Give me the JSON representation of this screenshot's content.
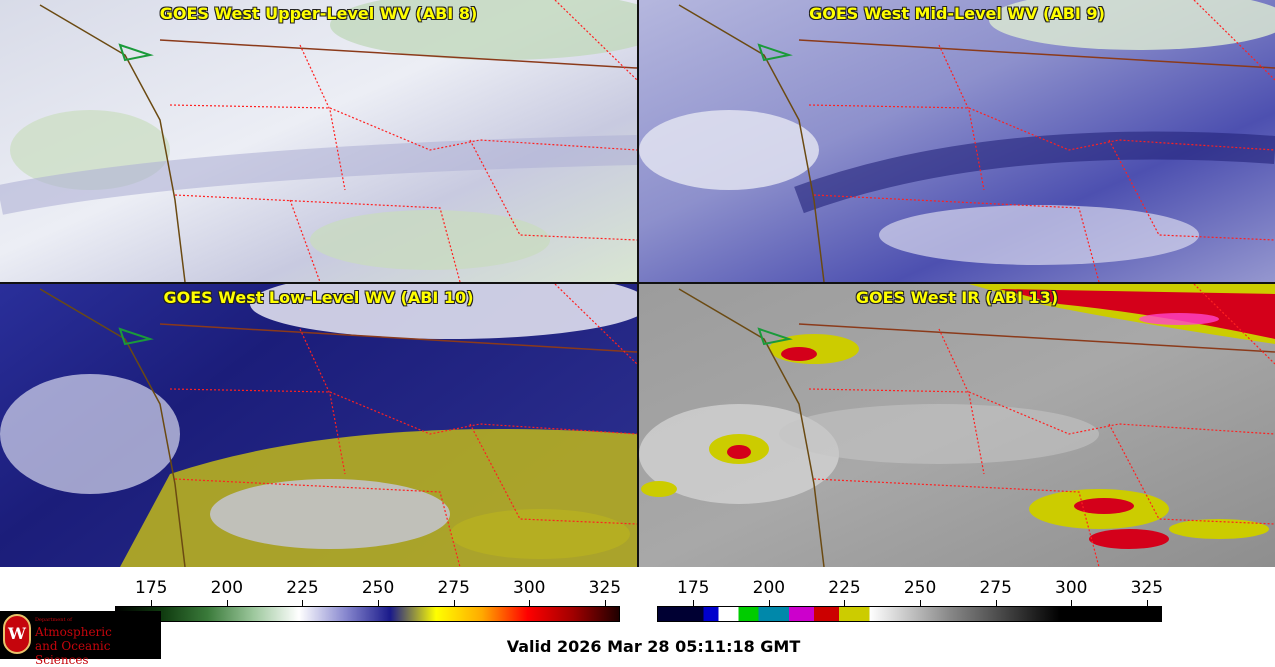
{
  "panels": [
    {
      "title": "GOES West Upper-Level WV (ABI 8)"
    },
    {
      "title": "GOES West Mid-Level WV (ABI 9)"
    },
    {
      "title": "GOES West Low-Level WV (ABI 10)"
    },
    {
      "title": "GOES West IR (ABI 13)"
    }
  ],
  "colorbars": {
    "wv": {
      "ticks": [
        "175",
        "200",
        "225",
        "250",
        "275",
        "300",
        "325"
      ],
      "colors": [
        "#000000",
        "#0f3a0f",
        "#3a7a3a",
        "#9cc79c",
        "#ffffff",
        "#8a8ad0",
        "#1a1a8a",
        "#ffff00",
        "#ffaa00",
        "#ff0000",
        "#a00000",
        "#200000"
      ]
    },
    "ir": {
      "ticks": [
        "175",
        "200",
        "225",
        "250",
        "275",
        "300",
        "325"
      ],
      "segments": [
        "#000033",
        "#0000cc",
        "#ffffff",
        "#00cc00",
        "#0088aa",
        "#cc00cc",
        "#cc0000",
        "#cccc00",
        "#ffffff",
        "#888888",
        "#000000"
      ]
    }
  },
  "logo": {
    "dept": "Department of",
    "line1": "Atmospheric",
    "line2": "and Oceanic Sciences",
    "seal": "W"
  },
  "valid": "Valid 2026 Mar 28 05:11:18 GMT"
}
